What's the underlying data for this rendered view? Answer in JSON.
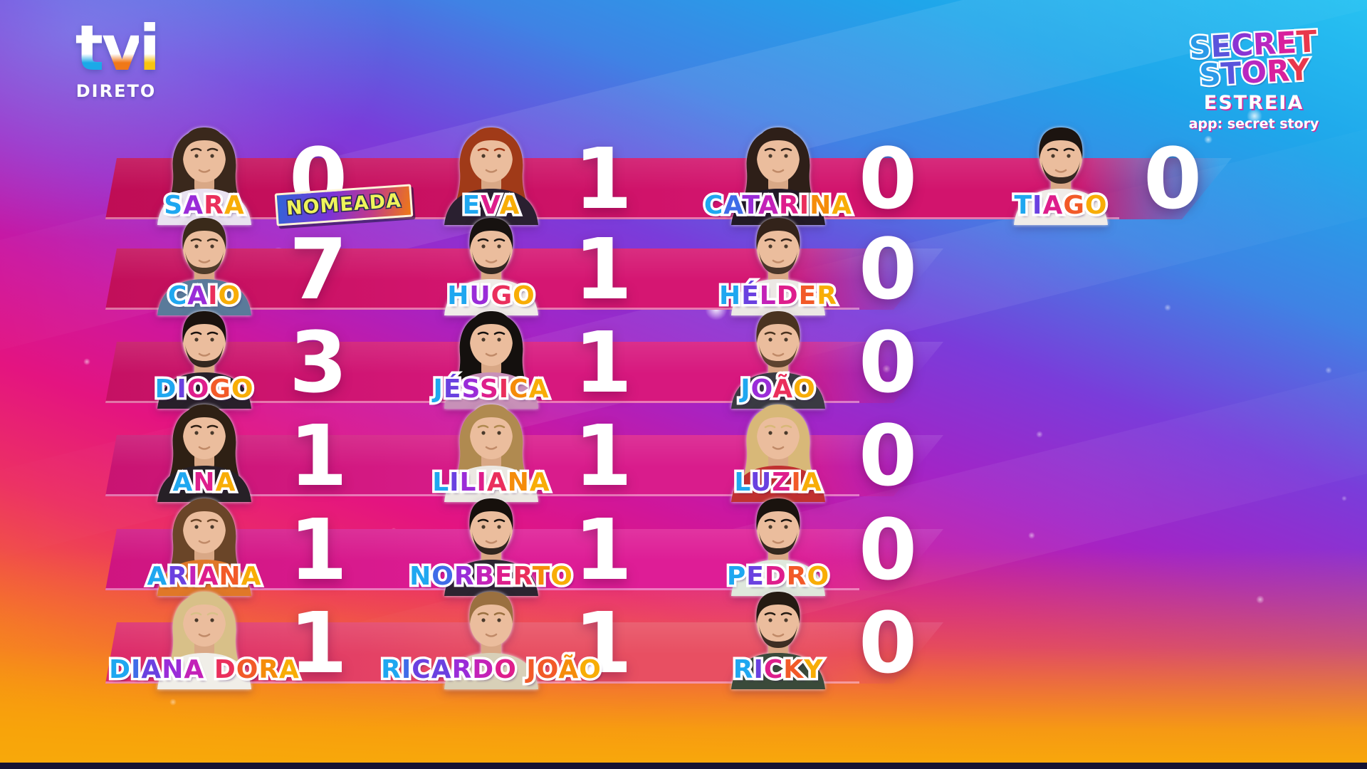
{
  "channel": {
    "logo_text": "tvi",
    "live_label": "DIRETO"
  },
  "show": {
    "title_line1": "SECRET",
    "title_line2": "STORY",
    "subtitle": "ESTREIA",
    "app_label": "app: secret story"
  },
  "colors": {
    "name_gradient": [
      "#1fa7f0",
      "#3f6ce8",
      "#6a41e0",
      "#9a2cd8",
      "#c322b8",
      "#de1e8c",
      "#ea2f5c",
      "#f25a28",
      "#f58c0a",
      "#f8ad06"
    ],
    "logo_gradient": [
      "#2a9ae8",
      "#5a54dc",
      "#8a35d4",
      "#b828c0",
      "#d8209c",
      "#e8384c"
    ],
    "tvi_dips": [
      "#1ba9e8",
      "#f07818",
      "#f8c410"
    ],
    "badge_text": "#eef45a",
    "vote_text": "#ffffff"
  },
  "rows": [
    {
      "cells": [
        {
          "name": "SARA",
          "votes": "0",
          "badge": "NOMEADA",
          "avatar": {
            "hair": "#3a281c",
            "long": true,
            "beard": false,
            "shirt": "#e9e2f0"
          }
        },
        {
          "name": "EVA",
          "votes": "1",
          "avatar": {
            "hair": "#a03a18",
            "long": true,
            "beard": false,
            "shirt": "#2a2030"
          }
        },
        {
          "name": "CATARINA",
          "votes": "0",
          "avatar": {
            "hair": "#2e1f18",
            "long": true,
            "beard": false,
            "shirt": "#221a26"
          }
        },
        {
          "name": "TIAGO",
          "votes": "0",
          "avatar": {
            "hair": "#1c1410",
            "long": false,
            "beard": true,
            "shirt": "#f0ece8"
          }
        }
      ]
    },
    {
      "cells": [
        {
          "name": "CAIO",
          "votes": "7",
          "avatar": {
            "hair": "#3a2a1a",
            "long": false,
            "beard": true,
            "shirt": "#5a7a9a"
          }
        },
        {
          "name": "HUGO",
          "votes": "1",
          "avatar": {
            "hair": "#171210",
            "long": false,
            "beard": true,
            "shirt": "#f0ece8"
          }
        },
        {
          "name": "HÉLDER",
          "votes": "0",
          "avatar": {
            "hair": "#33231a",
            "long": false,
            "beard": true,
            "shirt": "#ece8e4"
          }
        }
      ]
    },
    {
      "cells": [
        {
          "name": "DIOGO",
          "votes": "3",
          "avatar": {
            "hair": "#1a120e",
            "long": false,
            "beard": true,
            "shirt": "#28202a"
          }
        },
        {
          "name": "JÉSSICA",
          "votes": "1",
          "avatar": {
            "hair": "#14100e",
            "long": true,
            "beard": false,
            "shirt": "#c890b8"
          }
        },
        {
          "name": "JOÃO",
          "votes": "0",
          "avatar": {
            "hair": "#4a3320",
            "long": false,
            "beard": true,
            "shirt": "#3a3a42"
          }
        }
      ]
    },
    {
      "cells": [
        {
          "name": "ANA",
          "votes": "1",
          "avatar": {
            "hair": "#2e2014",
            "long": true,
            "beard": false,
            "shirt": "#262026"
          }
        },
        {
          "name": "LILIANA",
          "votes": "1",
          "avatar": {
            "hair": "#b08a50",
            "long": true,
            "beard": false,
            "shirt": "#ece8e2"
          }
        },
        {
          "name": "LUZIA",
          "votes": "0",
          "avatar": {
            "hair": "#d8b878",
            "long": true,
            "beard": false,
            "shirt": "#c03030"
          }
        }
      ]
    },
    {
      "cells": [
        {
          "name": "ARIANA",
          "votes": "1",
          "avatar": {
            "hair": "#6a4528",
            "long": true,
            "beard": false,
            "shirt": "#e07828"
          }
        },
        {
          "name": "NORBERTO",
          "votes": "1",
          "avatar": {
            "hair": "#16100c",
            "long": false,
            "beard": true,
            "shirt": "#2c2430"
          }
        },
        {
          "name": "PEDRO",
          "votes": "0",
          "avatar": {
            "hair": "#1a130e",
            "long": false,
            "beard": true,
            "shirt": "#dfe8dc"
          }
        }
      ]
    },
    {
      "cells": [
        {
          "name": "DIANA DORA",
          "votes": "1",
          "avatar": {
            "hair": "#d8c088",
            "long": true,
            "beard": false,
            "shirt": "#f0eee8"
          }
        },
        {
          "name": "RICARDO JOÃO",
          "votes": "1",
          "avatar": {
            "hair": "#9a7040",
            "long": false,
            "beard": false,
            "shirt": "#d8d0b8"
          }
        },
        {
          "name": "RICKY",
          "votes": "0",
          "avatar": {
            "hair": "#241a12",
            "long": false,
            "beard": true,
            "shirt": "#3a4a3a"
          }
        }
      ]
    }
  ]
}
